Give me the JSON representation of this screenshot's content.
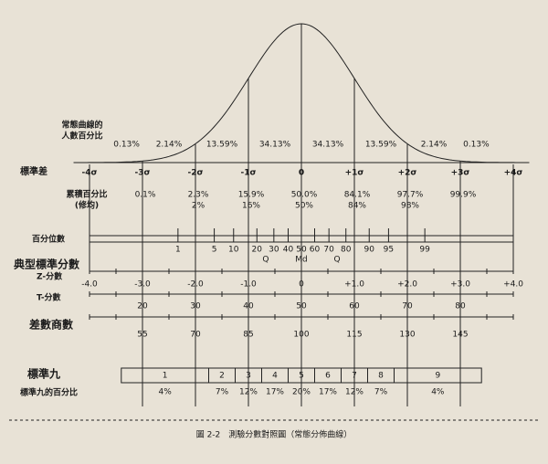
{
  "figure": {
    "curve_label": [
      "常態曲線的",
      "人數百分比"
    ],
    "segment_percents": [
      "0.13%",
      "2.14%",
      "13.59%",
      "34.13%",
      "34.13%",
      "13.59%",
      "2.14%",
      "0.13%"
    ],
    "sigma_label": "標準差",
    "sigmas": [
      "-4σ",
      "-3σ",
      "-2σ",
      "-1σ",
      "0",
      "+1σ",
      "+2σ",
      "+3σ",
      "+4σ"
    ],
    "cumulative_label": [
      "累積百分比",
      "(修均)"
    ],
    "cumulative": [
      "0.1%",
      "2.3%",
      "15.9%",
      "50.0%",
      "84.1%",
      "97.7%",
      "99.9%"
    ],
    "cumulative_rounded": [
      "2%",
      "16%",
      "50%",
      "84%",
      "98%"
    ],
    "percentile_label": "百分位數",
    "percentiles": [
      "1",
      "5",
      "10",
      "20",
      "30",
      "40",
      "50",
      "60",
      "70",
      "80",
      "90",
      "95",
      "99"
    ],
    "quartile_marks": [
      "Q",
      "Md",
      "Q"
    ],
    "standard_scores_label": "典型標準分數",
    "z_label": "Z-分數",
    "z_scores": [
      "-4.0",
      "-3.0",
      "-2.0",
      "-1.0",
      "0",
      "+1.0",
      "+2.0",
      "+3.0",
      "+4.0"
    ],
    "t_label": "T-分數",
    "t_scores": [
      "20",
      "30",
      "40",
      "50",
      "60",
      "70",
      "80"
    ],
    "iq_label": "差數商數",
    "iq_scores": [
      "55",
      "70",
      "85",
      "100",
      "115",
      "130",
      "145"
    ],
    "stanine_label": "標準九",
    "stanines": [
      "1",
      "2",
      "3",
      "4",
      "5",
      "6",
      "7",
      "8",
      "9"
    ],
    "stanine_percent_label": "標準九的百分比",
    "stanine_percents": [
      "4%",
      "7%",
      "12%",
      "17%",
      "20%",
      "17%",
      "12%",
      "7%",
      "4%"
    ],
    "caption": "圖 2-2　測驗分數對照圖（常態分佈曲線）"
  }
}
